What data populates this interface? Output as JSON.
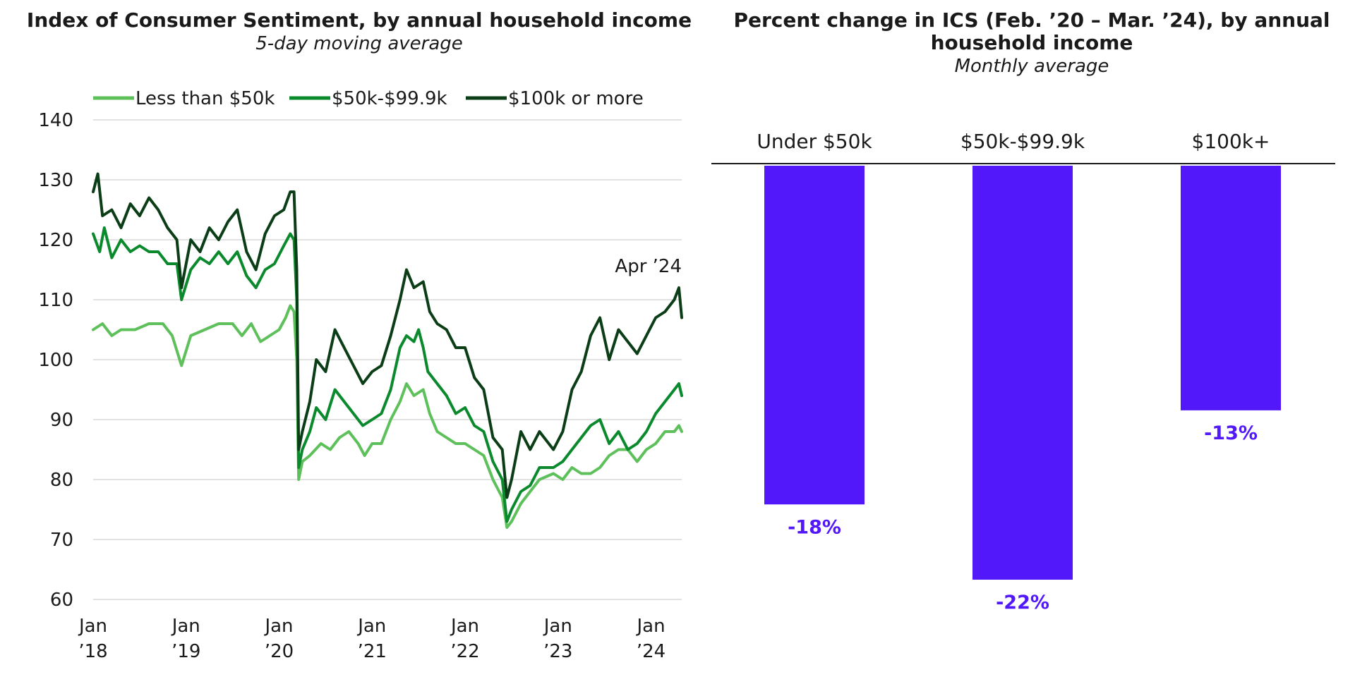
{
  "chart_data": [
    {
      "type": "line",
      "title": "Index of Consumer Sentiment, by annual household income",
      "subtitle": "5-day moving average",
      "ylim": [
        60,
        140
      ],
      "yticks": [
        60,
        70,
        80,
        90,
        100,
        110,
        120,
        130,
        140
      ],
      "xlim": [
        2018.0,
        2024.33
      ],
      "xticks": [
        {
          "x": 2018,
          "line1": "Jan",
          "line2": "’18"
        },
        {
          "x": 2019,
          "line1": "Jan",
          "line2": "’19"
        },
        {
          "x": 2020,
          "line1": "Jan",
          "line2": "’20"
        },
        {
          "x": 2021,
          "line1": "Jan",
          "line2": "’21"
        },
        {
          "x": 2022,
          "line1": "Jan",
          "line2": "’22"
        },
        {
          "x": 2023,
          "line1": "Jan",
          "line2": "’23"
        },
        {
          "x": 2024,
          "line1": "Jan",
          "line2": "’24"
        }
      ],
      "grid": true,
      "legend_position": "top",
      "annotation": "Apr ’24",
      "series": [
        {
          "name": "Less than $50k",
          "color": "#5dc05a",
          "points": [
            [
              2018.0,
              105
            ],
            [
              2018.1,
              106
            ],
            [
              2018.2,
              104
            ],
            [
              2018.3,
              105
            ],
            [
              2018.45,
              105
            ],
            [
              2018.6,
              106
            ],
            [
              2018.75,
              106
            ],
            [
              2018.85,
              104
            ],
            [
              2018.95,
              99
            ],
            [
              2019.05,
              104
            ],
            [
              2019.2,
              105
            ],
            [
              2019.35,
              106
            ],
            [
              2019.5,
              106
            ],
            [
              2019.6,
              104
            ],
            [
              2019.7,
              106
            ],
            [
              2019.8,
              103
            ],
            [
              2019.9,
              104
            ],
            [
              2020.0,
              105
            ],
            [
              2020.07,
              107
            ],
            [
              2020.12,
              109
            ],
            [
              2020.16,
              108
            ],
            [
              2020.19,
              100
            ],
            [
              2020.21,
              80
            ],
            [
              2020.25,
              83
            ],
            [
              2020.33,
              84
            ],
            [
              2020.45,
              86
            ],
            [
              2020.55,
              85
            ],
            [
              2020.65,
              87
            ],
            [
              2020.75,
              88
            ],
            [
              2020.85,
              86
            ],
            [
              2020.92,
              84
            ],
            [
              2021.0,
              86
            ],
            [
              2021.1,
              86
            ],
            [
              2021.2,
              90
            ],
            [
              2021.3,
              93
            ],
            [
              2021.37,
              96
            ],
            [
              2021.45,
              94
            ],
            [
              2021.55,
              95
            ],
            [
              2021.62,
              91
            ],
            [
              2021.7,
              88
            ],
            [
              2021.8,
              87
            ],
            [
              2021.9,
              86
            ],
            [
              2022.0,
              86
            ],
            [
              2022.1,
              85
            ],
            [
              2022.2,
              84
            ],
            [
              2022.3,
              80
            ],
            [
              2022.4,
              77
            ],
            [
              2022.45,
              72
            ],
            [
              2022.5,
              73
            ],
            [
              2022.6,
              76
            ],
            [
              2022.7,
              78
            ],
            [
              2022.8,
              80
            ],
            [
              2022.95,
              81
            ],
            [
              2023.05,
              80
            ],
            [
              2023.15,
              82
            ],
            [
              2023.25,
              81
            ],
            [
              2023.35,
              81
            ],
            [
              2023.45,
              82
            ],
            [
              2023.55,
              84
            ],
            [
              2023.65,
              85
            ],
            [
              2023.75,
              85
            ],
            [
              2023.85,
              83
            ],
            [
              2023.95,
              85
            ],
            [
              2024.05,
              86
            ],
            [
              2024.15,
              88
            ],
            [
              2024.25,
              88
            ],
            [
              2024.3,
              89
            ],
            [
              2024.33,
              88
            ]
          ]
        },
        {
          "name": "$50k-$99.9k",
          "color": "#0a8a2c",
          "points": [
            [
              2018.0,
              121
            ],
            [
              2018.07,
              118
            ],
            [
              2018.12,
              122
            ],
            [
              2018.2,
              117
            ],
            [
              2018.3,
              120
            ],
            [
              2018.4,
              118
            ],
            [
              2018.5,
              119
            ],
            [
              2018.6,
              118
            ],
            [
              2018.7,
              118
            ],
            [
              2018.8,
              116
            ],
            [
              2018.9,
              116
            ],
            [
              2018.95,
              110
            ],
            [
              2019.05,
              115
            ],
            [
              2019.15,
              117
            ],
            [
              2019.25,
              116
            ],
            [
              2019.35,
              118
            ],
            [
              2019.45,
              116
            ],
            [
              2019.55,
              118
            ],
            [
              2019.65,
              114
            ],
            [
              2019.75,
              112
            ],
            [
              2019.85,
              115
            ],
            [
              2019.95,
              116
            ],
            [
              2020.05,
              119
            ],
            [
              2020.12,
              121
            ],
            [
              2020.16,
              120
            ],
            [
              2020.19,
              110
            ],
            [
              2020.21,
              82
            ],
            [
              2020.25,
              85
            ],
            [
              2020.33,
              88
            ],
            [
              2020.4,
              92
            ],
            [
              2020.5,
              90
            ],
            [
              2020.6,
              95
            ],
            [
              2020.7,
              93
            ],
            [
              2020.8,
              91
            ],
            [
              2020.9,
              89
            ],
            [
              2021.0,
              90
            ],
            [
              2021.1,
              91
            ],
            [
              2021.2,
              95
            ],
            [
              2021.3,
              102
            ],
            [
              2021.37,
              104
            ],
            [
              2021.45,
              103
            ],
            [
              2021.5,
              105
            ],
            [
              2021.55,
              102
            ],
            [
              2021.6,
              98
            ],
            [
              2021.7,
              96
            ],
            [
              2021.8,
              94
            ],
            [
              2021.9,
              91
            ],
            [
              2022.0,
              92
            ],
            [
              2022.1,
              89
            ],
            [
              2022.2,
              88
            ],
            [
              2022.3,
              83
            ],
            [
              2022.4,
              80
            ],
            [
              2022.45,
              73
            ],
            [
              2022.5,
              75
            ],
            [
              2022.6,
              78
            ],
            [
              2022.7,
              79
            ],
            [
              2022.8,
              82
            ],
            [
              2022.95,
              82
            ],
            [
              2023.05,
              83
            ],
            [
              2023.15,
              85
            ],
            [
              2023.25,
              87
            ],
            [
              2023.35,
              89
            ],
            [
              2023.45,
              90
            ],
            [
              2023.55,
              86
            ],
            [
              2023.65,
              88
            ],
            [
              2023.75,
              85
            ],
            [
              2023.85,
              86
            ],
            [
              2023.95,
              88
            ],
            [
              2024.05,
              91
            ],
            [
              2024.15,
              93
            ],
            [
              2024.25,
              95
            ],
            [
              2024.3,
              96
            ],
            [
              2024.33,
              94
            ]
          ]
        },
        {
          "name": "$100k or more",
          "color": "#0b3d16",
          "points": [
            [
              2018.0,
              128
            ],
            [
              2018.05,
              131
            ],
            [
              2018.1,
              124
            ],
            [
              2018.2,
              125
            ],
            [
              2018.3,
              122
            ],
            [
              2018.4,
              126
            ],
            [
              2018.5,
              124
            ],
            [
              2018.6,
              127
            ],
            [
              2018.7,
              125
            ],
            [
              2018.8,
              122
            ],
            [
              2018.9,
              120
            ],
            [
              2018.95,
              112
            ],
            [
              2019.05,
              120
            ],
            [
              2019.15,
              118
            ],
            [
              2019.25,
              122
            ],
            [
              2019.35,
              120
            ],
            [
              2019.45,
              123
            ],
            [
              2019.55,
              125
            ],
            [
              2019.65,
              118
            ],
            [
              2019.75,
              115
            ],
            [
              2019.85,
              121
            ],
            [
              2019.95,
              124
            ],
            [
              2020.05,
              125
            ],
            [
              2020.12,
              128
            ],
            [
              2020.16,
              128
            ],
            [
              2020.19,
              115
            ],
            [
              2020.21,
              85
            ],
            [
              2020.25,
              88
            ],
            [
              2020.33,
              93
            ],
            [
              2020.4,
              100
            ],
            [
              2020.5,
              98
            ],
            [
              2020.6,
              105
            ],
            [
              2020.7,
              102
            ],
            [
              2020.8,
              99
            ],
            [
              2020.9,
              96
            ],
            [
              2021.0,
              98
            ],
            [
              2021.1,
              99
            ],
            [
              2021.2,
              104
            ],
            [
              2021.3,
              110
            ],
            [
              2021.37,
              115
            ],
            [
              2021.45,
              112
            ],
            [
              2021.55,
              113
            ],
            [
              2021.62,
              108
            ],
            [
              2021.7,
              106
            ],
            [
              2021.8,
              105
            ],
            [
              2021.9,
              102
            ],
            [
              2022.0,
              102
            ],
            [
              2022.1,
              97
            ],
            [
              2022.2,
              95
            ],
            [
              2022.3,
              87
            ],
            [
              2022.4,
              85
            ],
            [
              2022.45,
              77
            ],
            [
              2022.5,
              80
            ],
            [
              2022.6,
              88
            ],
            [
              2022.7,
              85
            ],
            [
              2022.8,
              88
            ],
            [
              2022.95,
              85
            ],
            [
              2023.05,
              88
            ],
            [
              2023.15,
              95
            ],
            [
              2023.25,
              98
            ],
            [
              2023.35,
              104
            ],
            [
              2023.45,
              107
            ],
            [
              2023.55,
              100
            ],
            [
              2023.65,
              105
            ],
            [
              2023.75,
              103
            ],
            [
              2023.85,
              101
            ],
            [
              2023.95,
              104
            ],
            [
              2024.05,
              107
            ],
            [
              2024.15,
              108
            ],
            [
              2024.25,
              110
            ],
            [
              2024.3,
              112
            ],
            [
              2024.33,
              107
            ]
          ]
        }
      ]
    },
    {
      "type": "bar",
      "title": "Percent change in ICS (Feb. ’20 – Mar. ’24), by annual household income",
      "title_lines": [
        "Percent change in ICS (Feb. ’20 – Mar. ’24), by annual",
        "household income"
      ],
      "subtitle": "Monthly average",
      "categories": [
        "Under $50k",
        "$50k-$99.9k",
        "$100k+"
      ],
      "values": [
        -18,
        -22,
        -13
      ],
      "labels": [
        "-18%",
        "-22%",
        "-13%"
      ],
      "ylim": [
        -22,
        0
      ],
      "bar_color": "#5218fa",
      "label_color": "#5218fa"
    }
  ]
}
